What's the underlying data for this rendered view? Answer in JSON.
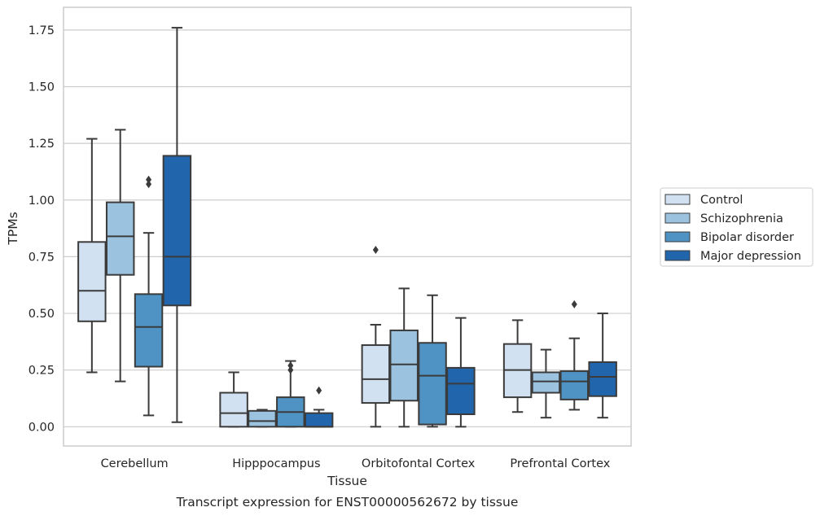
{
  "chart_data": {
    "type": "box",
    "caption": "Transcript expression for ENST00000562672 by tissue",
    "xlabel": "Tissue",
    "ylabel": "TPMs",
    "ylim": [
      -0.085,
      1.85
    ],
    "yticks": [
      "0.00",
      "0.25",
      "0.50",
      "0.75",
      "1.00",
      "1.25",
      "1.50",
      "1.75"
    ],
    "ytick_values": [
      0,
      0.25,
      0.5,
      0.75,
      1.0,
      1.25,
      1.5,
      1.75
    ],
    "grid": "horizontal",
    "legend_position": "right",
    "categories": [
      "Cerebellum",
      "Hipppocampus",
      "Orbitofontal Cortex",
      "Prefrontal Cortex"
    ],
    "series": [
      {
        "name": "Control",
        "color": "#d2e1f2",
        "boxes": [
          {
            "whisker_low": 0.24,
            "q1": 0.465,
            "median": 0.6,
            "q3": 0.815,
            "whisker_high": 1.27,
            "outliers": []
          },
          {
            "whisker_low": 0.0,
            "q1": 0.0,
            "median": 0.06,
            "q3": 0.15,
            "whisker_high": 0.24,
            "outliers": []
          },
          {
            "whisker_low": 0.0,
            "q1": 0.105,
            "median": 0.21,
            "q3": 0.36,
            "whisker_high": 0.45,
            "outliers": [
              0.78
            ]
          },
          {
            "whisker_low": 0.065,
            "q1": 0.13,
            "median": 0.25,
            "q3": 0.365,
            "whisker_high": 0.47,
            "outliers": []
          }
        ]
      },
      {
        "name": "Schizophrenia",
        "color": "#9bc2de",
        "boxes": [
          {
            "whisker_low": 0.2,
            "q1": 0.67,
            "median": 0.84,
            "q3": 0.99,
            "whisker_high": 1.31,
            "outliers": []
          },
          {
            "whisker_low": 0.0,
            "q1": 0.0,
            "median": 0.025,
            "q3": 0.07,
            "whisker_high": 0.075,
            "outliers": []
          },
          {
            "whisker_low": 0.0,
            "q1": 0.115,
            "median": 0.275,
            "q3": 0.425,
            "whisker_high": 0.61,
            "outliers": []
          },
          {
            "whisker_low": 0.04,
            "q1": 0.15,
            "median": 0.2,
            "q3": 0.24,
            "whisker_high": 0.34,
            "outliers": []
          }
        ]
      },
      {
        "name": "Bipolar disorder",
        "color": "#4e93c4",
        "boxes": [
          {
            "whisker_low": 0.05,
            "q1": 0.265,
            "median": 0.44,
            "q3": 0.585,
            "whisker_high": 0.855,
            "outliers": [
              1.07,
              1.09
            ]
          },
          {
            "whisker_low": 0.0,
            "q1": 0.0,
            "median": 0.065,
            "q3": 0.13,
            "whisker_high": 0.29,
            "outliers": [
              0.25,
              0.27
            ]
          },
          {
            "whisker_low": 0.0,
            "q1": 0.01,
            "median": 0.225,
            "q3": 0.37,
            "whisker_high": 0.58,
            "outliers": []
          },
          {
            "whisker_low": 0.075,
            "q1": 0.12,
            "median": 0.2,
            "q3": 0.245,
            "whisker_high": 0.39,
            "outliers": [
              0.54
            ]
          }
        ]
      },
      {
        "name": "Major depression",
        "color": "#2166ac",
        "boxes": [
          {
            "whisker_low": 0.02,
            "q1": 0.535,
            "median": 0.75,
            "q3": 1.195,
            "whisker_high": 1.76,
            "outliers": []
          },
          {
            "whisker_low": 0.0,
            "q1": 0.0,
            "median": 0.0,
            "q3": 0.06,
            "whisker_high": 0.075,
            "outliers": [
              0.16
            ]
          },
          {
            "whisker_low": 0.0,
            "q1": 0.055,
            "median": 0.19,
            "q3": 0.26,
            "whisker_high": 0.48,
            "outliers": []
          },
          {
            "whisker_low": 0.04,
            "q1": 0.135,
            "median": 0.22,
            "q3": 0.285,
            "whisker_high": 0.5,
            "outliers": []
          }
        ]
      }
    ],
    "colors": {
      "grid": "#cccccc",
      "frame": "#cccccc",
      "box_edge": "#3b3b3b",
      "text": "#262626"
    }
  }
}
